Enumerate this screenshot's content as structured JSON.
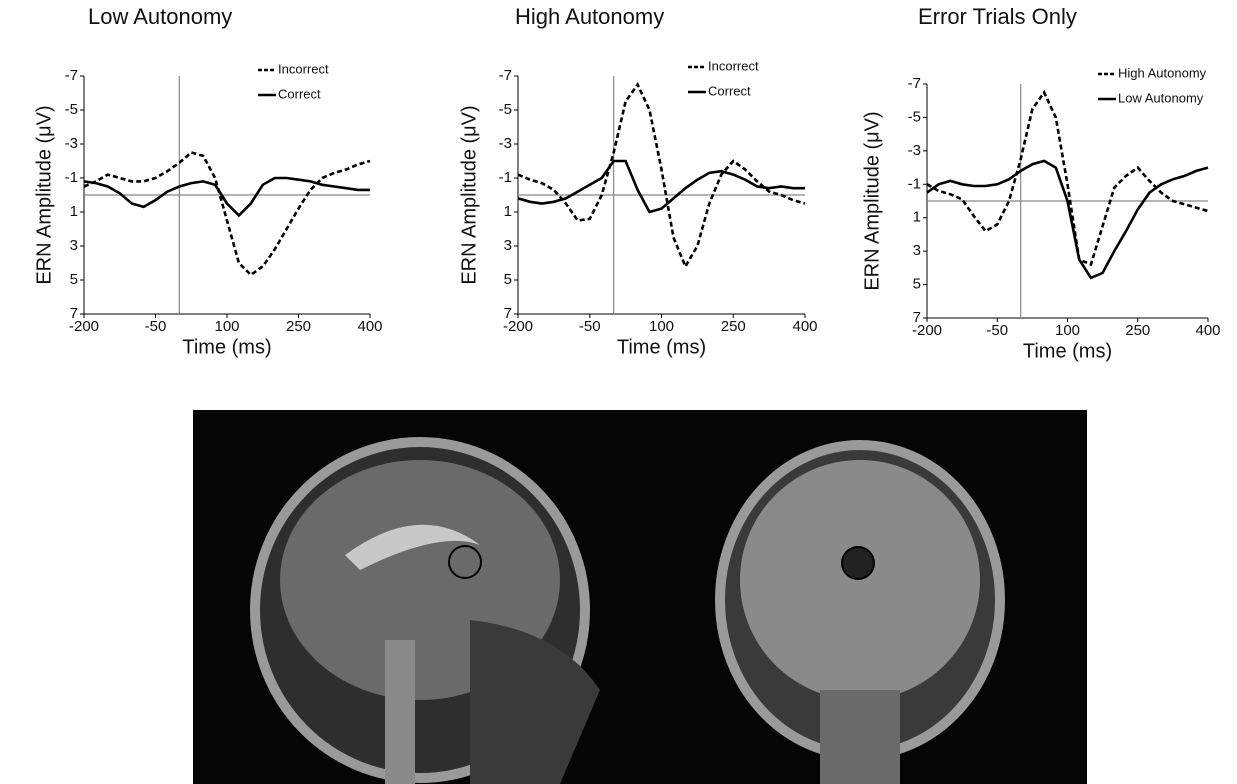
{
  "chart_data": [
    {
      "type": "line",
      "title": "Low Autonomy",
      "xlabel": "Time (ms)",
      "ylabel": "ERN Amplitude (μV)",
      "x": [
        -200,
        -175,
        -150,
        -125,
        -100,
        -75,
        -50,
        -25,
        0,
        25,
        50,
        75,
        100,
        125,
        150,
        175,
        200,
        225,
        250,
        275,
        300,
        325,
        350,
        375,
        400
      ],
      "xlim": [
        -200,
        400
      ],
      "xticks": [
        -200,
        -50,
        100,
        250,
        400
      ],
      "ylim": [
        7,
        -7
      ],
      "yticks": [
        -7,
        -5,
        -3,
        -1,
        1,
        3,
        5,
        7
      ],
      "zero_lines": true,
      "legend": "top-right",
      "series": [
        {
          "name": "Incorrect",
          "color": "#000000",
          "dash": true,
          "values": [
            -0.5,
            -0.8,
            -1.2,
            -1.0,
            -0.8,
            -0.8,
            -1.0,
            -1.4,
            -1.9,
            -2.5,
            -2.3,
            -1.0,
            1.5,
            4.0,
            4.7,
            4.2,
            3.2,
            2.0,
            0.8,
            -0.3,
            -1.0,
            -1.3,
            -1.5,
            -1.8,
            -2.0
          ]
        },
        {
          "name": "Correct",
          "color": "#000000",
          "dash": false,
          "values": [
            -0.8,
            -0.7,
            -0.5,
            -0.1,
            0.5,
            0.7,
            0.3,
            -0.2,
            -0.5,
            -0.7,
            -0.8,
            -0.6,
            0.5,
            1.2,
            0.5,
            -0.6,
            -1.0,
            -1.0,
            -0.9,
            -0.8,
            -0.6,
            -0.5,
            -0.4,
            -0.3,
            -0.3
          ]
        }
      ]
    },
    {
      "type": "line",
      "title": "High Autonomy",
      "xlabel": "Time (ms)",
      "ylabel": "ERN Amplitude (μV)",
      "x": [
        -200,
        -175,
        -150,
        -125,
        -100,
        -75,
        -50,
        -25,
        0,
        25,
        50,
        75,
        100,
        125,
        150,
        175,
        200,
        225,
        250,
        275,
        300,
        325,
        350,
        375,
        400
      ],
      "xlim": [
        -200,
        400
      ],
      "xticks": [
        -200,
        -50,
        100,
        250,
        400
      ],
      "ylim": [
        7,
        -7
      ],
      "yticks": [
        -7,
        -5,
        -3,
        -1,
        1,
        3,
        5,
        7
      ],
      "zero_lines": true,
      "legend": "top-right",
      "series": [
        {
          "name": "Incorrect",
          "color": "#000000",
          "dash": true,
          "values": [
            -1.2,
            -0.9,
            -0.7,
            -0.3,
            0.5,
            1.5,
            1.4,
            0.0,
            -2.5,
            -5.5,
            -6.5,
            -5.0,
            -1.5,
            2.5,
            4.2,
            3.0,
            0.5,
            -1.2,
            -2.0,
            -1.5,
            -0.8,
            -0.2,
            0.0,
            0.3,
            0.5
          ]
        },
        {
          "name": "Correct",
          "color": "#000000",
          "dash": false,
          "values": [
            0.2,
            0.4,
            0.5,
            0.4,
            0.2,
            -0.2,
            -0.6,
            -1.0,
            -2.0,
            -2.0,
            -0.3,
            1.0,
            0.8,
            0.2,
            -0.4,
            -0.9,
            -1.3,
            -1.4,
            -1.2,
            -0.9,
            -0.5,
            -0.4,
            -0.5,
            -0.4,
            -0.4
          ]
        }
      ]
    },
    {
      "type": "line",
      "title": "Error Trials Only",
      "xlabel": "Time (ms)",
      "ylabel": "ERN Amplitude (μV)",
      "x": [
        -200,
        -175,
        -150,
        -125,
        -100,
        -75,
        -50,
        -25,
        0,
        25,
        50,
        75,
        100,
        125,
        150,
        175,
        200,
        225,
        250,
        275,
        300,
        325,
        350,
        375,
        400
      ],
      "xlim": [
        -200,
        400
      ],
      "xticks": [
        -200,
        -50,
        100,
        250,
        400
      ],
      "ylim": [
        7,
        -7
      ],
      "yticks": [
        -7,
        -5,
        -3,
        -1,
        1,
        3,
        5,
        7
      ],
      "zero_lines": true,
      "legend": "top-right",
      "series": [
        {
          "name": "High Autonomy",
          "color": "#000000",
          "dash": true,
          "values": [
            -1.0,
            -0.6,
            -0.4,
            -0.1,
            0.9,
            1.8,
            1.4,
            0.0,
            -2.5,
            -5.5,
            -6.5,
            -5.0,
            -1.0,
            3.5,
            3.8,
            1.5,
            -0.8,
            -1.5,
            -2.0,
            -1.2,
            -0.5,
            0.0,
            0.2,
            0.4,
            0.6
          ]
        },
        {
          "name": "Low Autonomy",
          "color": "#000000",
          "dash": false,
          "values": [
            -0.5,
            -1.0,
            -1.2,
            -1.0,
            -0.9,
            -0.9,
            -1.0,
            -1.3,
            -1.8,
            -2.2,
            -2.4,
            -2.0,
            0.0,
            3.5,
            4.6,
            4.3,
            3.0,
            1.8,
            0.5,
            -0.5,
            -1.0,
            -1.3,
            -1.5,
            -1.8,
            -2.0
          ]
        }
      ]
    }
  ]
}
